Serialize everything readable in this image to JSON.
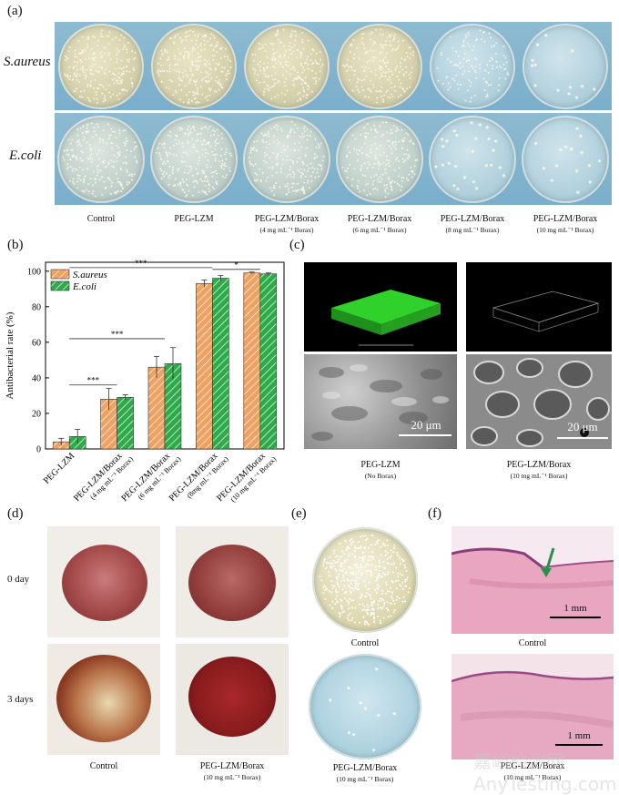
{
  "panels": {
    "a": "(a)",
    "b": "(b)",
    "c": "(c)",
    "d": "(d)",
    "e": "(e)",
    "f": "(f)"
  },
  "panel_a": {
    "rows": [
      "S.aureus",
      "E.coli"
    ],
    "columns": [
      {
        "main": "Control",
        "sub": ""
      },
      {
        "main": "PEG-LZM",
        "sub": ""
      },
      {
        "main": "PEG-LZM/Borax",
        "sub": "(4 mg mL⁻¹ Borax)"
      },
      {
        "main": "PEG-LZM/Borax",
        "sub": "(6 mg mL⁻¹ Borax)"
      },
      {
        "main": "PEG-LZM/Borax",
        "sub": "(8 mg mL⁻¹ Borax)"
      },
      {
        "main": "PEG-LZM/Borax",
        "sub": "(10 mg mL⁻¹ Borax)"
      }
    ],
    "colony_levels_saureus": [
      0.85,
      0.95,
      0.8,
      0.75,
      0.45,
      0.05
    ],
    "colony_levels_ecoli": [
      0.85,
      0.9,
      0.8,
      0.75,
      0.1,
      0.06
    ]
  },
  "chart_data": {
    "type": "bar",
    "ylabel": "Antibacterial rate (%)",
    "ylim": [
      0,
      105
    ],
    "yticks": [
      0,
      20,
      40,
      60,
      80,
      100
    ],
    "categories": [
      "PEG-LZM",
      "PEG-LZM/Borax (4 mg mL⁻¹ Borax)",
      "PEG-LZM/Borax (6 mg mL⁻¹ Borax)",
      "PEG-LZM/Borax (8mg mL⁻¹ Borax)",
      "PEG-LZM/Borax (10 mg mL⁻¹ Borax)"
    ],
    "tick_lines": [
      [
        "PEG-LZM",
        ""
      ],
      [
        "PEG-LZM/Borax",
        "(4 mg mL⁻¹ Borax)"
      ],
      [
        "PEG-LZM/Borax",
        "(6 mg mL⁻¹ Borax)"
      ],
      [
        "PEG-LZM/Borax",
        "(8mg mL⁻¹ Borax)"
      ],
      [
        "PEG-LZM/Borax",
        "(10 mg mL⁻¹ Borax)"
      ]
    ],
    "series": [
      {
        "name": "S.aureus",
        "color": "#f0a060",
        "values": [
          4,
          28,
          46,
          93,
          99
        ],
        "errors": [
          2,
          6,
          6,
          2,
          0.5
        ]
      },
      {
        "name": "E.coli",
        "color": "#2eaa4a",
        "values": [
          7,
          29,
          48,
          96,
          98.5
        ],
        "errors": [
          4,
          1.5,
          9,
          1.5,
          0.5
        ]
      }
    ],
    "significance": [
      {
        "from": 0,
        "to": 1,
        "y": 36,
        "label": "***"
      },
      {
        "from": 0,
        "to": 2,
        "y": 62,
        "label": "***"
      },
      {
        "from": 0,
        "to": 3,
        "y": 102,
        "label": "***"
      },
      {
        "from": 3,
        "to": 4,
        "y": 101,
        "label": "*"
      }
    ],
    "legend": "top-left"
  },
  "panel_c": {
    "scale_bar": "20 μm",
    "labels": [
      {
        "main": "PEG-LZM",
        "sub": "(No Borax)"
      },
      {
        "main": "PEG-LZM/Borax",
        "sub": "(10 mg mL⁻¹ Borax)"
      }
    ]
  },
  "panel_d": {
    "rows": [
      "0 day",
      "3 days"
    ],
    "columns": [
      {
        "main": "Control",
        "sub": ""
      },
      {
        "main": "PEG-LZM/Borax",
        "sub": "(10 mg mL⁻¹ Borax)"
      }
    ]
  },
  "panel_e": {
    "labels": [
      {
        "main": "Control",
        "sub": ""
      },
      {
        "main": "PEG-LZM/Borax",
        "sub": "(10 mg mL⁻¹ Borax)"
      }
    ]
  },
  "panel_f": {
    "scale_bar": "1 mm",
    "labels": [
      {
        "main": "Control",
        "sub": ""
      },
      {
        "main": "PEG-LZM/Borax",
        "sub": "(10 mg mL⁻¹ Borax)"
      }
    ]
  },
  "watermark": "嘉峪检测网 AnyTesting.com"
}
